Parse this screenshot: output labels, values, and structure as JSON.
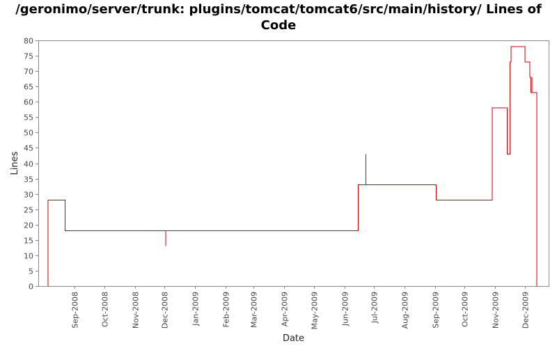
{
  "chart_data": {
    "type": "line",
    "title": "/geronimo/server/trunk: plugins/tomcat/tomcat6/src/main/history/ Lines of Code",
    "xlabel": "Date",
    "ylabel": "Lines",
    "ylim": [
      0,
      80
    ],
    "yticks": [
      0,
      5,
      10,
      15,
      20,
      25,
      30,
      35,
      40,
      45,
      50,
      55,
      60,
      65,
      70,
      75,
      80
    ],
    "xlim": [
      "2008-07-26",
      "2009-12-25"
    ],
    "xticks": [
      {
        "date": "2008-09-01",
        "label": "Sep-2008"
      },
      {
        "date": "2008-10-01",
        "label": "Oct-2008"
      },
      {
        "date": "2008-11-01",
        "label": "Nov-2008"
      },
      {
        "date": "2008-12-01",
        "label": "Dec-2008"
      },
      {
        "date": "2009-01-01",
        "label": "Jan-2009"
      },
      {
        "date": "2009-02-01",
        "label": "Feb-2009"
      },
      {
        "date": "2009-03-01",
        "label": "Mar-2009"
      },
      {
        "date": "2009-04-01",
        "label": "Apr-2009"
      },
      {
        "date": "2009-05-01",
        "label": "May-2009"
      },
      {
        "date": "2009-06-01",
        "label": "Jun-2009"
      },
      {
        "date": "2009-07-01",
        "label": "Jul-2009"
      },
      {
        "date": "2009-08-01",
        "label": "Aug-2009"
      },
      {
        "date": "2009-09-01",
        "label": "Sep-2009"
      },
      {
        "date": "2009-10-01",
        "label": "Oct-2009"
      },
      {
        "date": "2009-11-01",
        "label": "Nov-2009"
      },
      {
        "date": "2009-12-01",
        "label": "Dec-2009"
      }
    ],
    "series": [
      {
        "name": "Lines of Code",
        "color": "#cc0000",
        "points": [
          {
            "date": "2008-08-05",
            "value": 0
          },
          {
            "date": "2008-08-05",
            "value": 28
          },
          {
            "date": "2008-08-22",
            "value": 28
          },
          {
            "date": "2008-08-22",
            "value": 18
          },
          {
            "date": "2008-12-02",
            "value": 18
          },
          {
            "date": "2008-12-02",
            "value": 13
          },
          {
            "date": "2008-12-02",
            "value": 18
          },
          {
            "date": "2009-06-15",
            "value": 18
          },
          {
            "date": "2009-06-15",
            "value": 33
          },
          {
            "date": "2009-06-23",
            "value": 33
          },
          {
            "date": "2009-06-23",
            "value": 43
          },
          {
            "date": "2009-06-23",
            "value": 33
          },
          {
            "date": "2009-09-02",
            "value": 33
          },
          {
            "date": "2009-09-02",
            "value": 28
          },
          {
            "date": "2009-10-29",
            "value": 28
          },
          {
            "date": "2009-10-29",
            "value": 58
          },
          {
            "date": "2009-11-13",
            "value": 58
          },
          {
            "date": "2009-11-13",
            "value": 43
          },
          {
            "date": "2009-11-16",
            "value": 43
          },
          {
            "date": "2009-11-16",
            "value": 73
          },
          {
            "date": "2009-11-17",
            "value": 73
          },
          {
            "date": "2009-11-17",
            "value": 78
          },
          {
            "date": "2009-12-01",
            "value": 78
          },
          {
            "date": "2009-12-01",
            "value": 73
          },
          {
            "date": "2009-12-06",
            "value": 73
          },
          {
            "date": "2009-12-06",
            "value": 68
          },
          {
            "date": "2009-12-07",
            "value": 68
          },
          {
            "date": "2009-12-07",
            "value": 63
          },
          {
            "date": "2009-12-08",
            "value": 63
          },
          {
            "date": "2009-12-08",
            "value": 68
          },
          {
            "date": "2009-12-08",
            "value": 63
          },
          {
            "date": "2009-12-13",
            "value": 63
          },
          {
            "date": "2009-12-13",
            "value": 0
          }
        ]
      }
    ]
  }
}
